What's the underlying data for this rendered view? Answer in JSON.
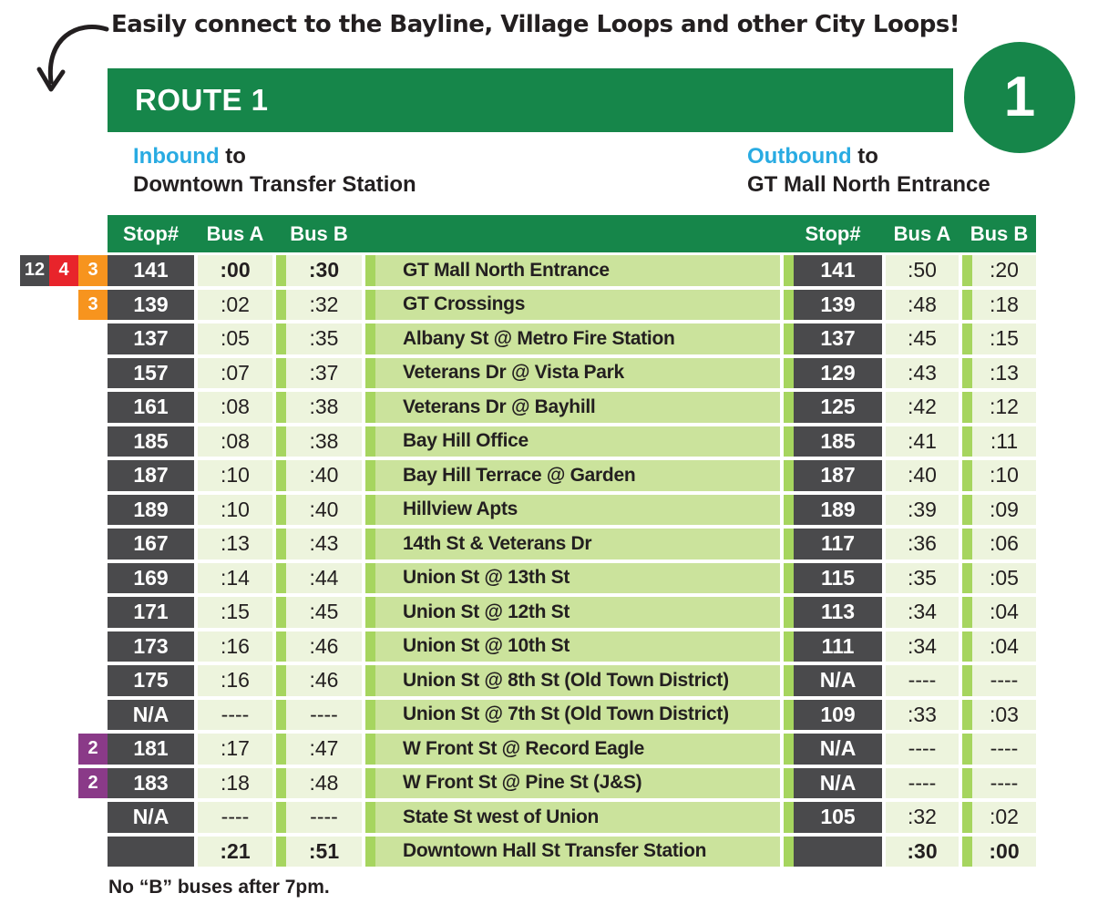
{
  "note": {
    "text": "Easily connect to the Bayline, Village Loops and other City Loops!"
  },
  "banner": {
    "title": "ROUTE 1",
    "circle_number": "1"
  },
  "directions": {
    "inbound": {
      "direction": "Inbound",
      "connector": " to",
      "destination": "Downtown Transfer Station"
    },
    "outbound": {
      "direction": "Outbound",
      "connector": " to",
      "destination": "GT Mall North Entrance"
    }
  },
  "table": {
    "headers": {
      "stop": "Stop#",
      "bus_a": "Bus A",
      "bus_b": "Bus B"
    },
    "rows": [
      {
        "badges": [
          {
            "label": "12",
            "color": "#4a4a4c"
          },
          {
            "label": "4",
            "color": "#e8242b"
          },
          {
            "label": "3",
            "color": "#f7941e"
          }
        ],
        "in": [
          "141",
          ":00",
          ":30"
        ],
        "in_bold": true,
        "name": "GT Mall North Entrance",
        "out": [
          "141",
          ":50",
          ":20"
        ],
        "out_bold": false
      },
      {
        "badges": [
          {
            "label": "3",
            "color": "#f7941e"
          }
        ],
        "in": [
          "139",
          ":02",
          ":32"
        ],
        "in_bold": false,
        "name": "GT Crossings",
        "out": [
          "139",
          ":48",
          ":18"
        ],
        "out_bold": false
      },
      {
        "in": [
          "137",
          ":05",
          ":35"
        ],
        "in_bold": false,
        "name": "Albany St @ Metro Fire Station",
        "out": [
          "137",
          ":45",
          ":15"
        ],
        "out_bold": false
      },
      {
        "in": [
          "157",
          ":07",
          ":37"
        ],
        "in_bold": false,
        "name": "Veterans Dr @ Vista Park",
        "out": [
          "129",
          ":43",
          ":13"
        ],
        "out_bold": false
      },
      {
        "in": [
          "161",
          ":08",
          ":38"
        ],
        "in_bold": false,
        "name": "Veterans Dr @ Bayhill",
        "out": [
          "125",
          ":42",
          ":12"
        ],
        "out_bold": false
      },
      {
        "in": [
          "185",
          ":08",
          ":38"
        ],
        "in_bold": false,
        "name": "Bay Hill Office",
        "out": [
          "185",
          ":41",
          ":11"
        ],
        "out_bold": false
      },
      {
        "in": [
          "187",
          ":10",
          ":40"
        ],
        "in_bold": false,
        "name": "Bay Hill Terrace @ Garden",
        "out": [
          "187",
          ":40",
          ":10"
        ],
        "out_bold": false
      },
      {
        "in": [
          "189",
          ":10",
          ":40"
        ],
        "in_bold": false,
        "name": "Hillview Apts",
        "out": [
          "189",
          ":39",
          ":09"
        ],
        "out_bold": false
      },
      {
        "in": [
          "167",
          ":13",
          ":43"
        ],
        "in_bold": false,
        "name": "14th St & Veterans Dr",
        "out": [
          "117",
          ":36",
          ":06"
        ],
        "out_bold": false
      },
      {
        "in": [
          "169",
          ":14",
          ":44"
        ],
        "in_bold": false,
        "name": "Union St @ 13th St",
        "out": [
          "115",
          ":35",
          ":05"
        ],
        "out_bold": false
      },
      {
        "in": [
          "171",
          ":15",
          ":45"
        ],
        "in_bold": false,
        "name": "Union St @ 12th St",
        "out": [
          "113",
          ":34",
          ":04"
        ],
        "out_bold": false
      },
      {
        "in": [
          "173",
          ":16",
          ":46"
        ],
        "in_bold": false,
        "name": "Union St @ 10th St",
        "out": [
          "111",
          ":34",
          ":04"
        ],
        "out_bold": false
      },
      {
        "in": [
          "175",
          ":16",
          ":46"
        ],
        "in_bold": false,
        "name": "Union St @ 8th St (Old Town District)",
        "out": [
          "N/A",
          "----",
          "----"
        ],
        "out_bold": false
      },
      {
        "in": [
          "N/A",
          "----",
          "----"
        ],
        "in_bold": false,
        "name": "Union St @ 7th St (Old Town District)",
        "out": [
          "109",
          ":33",
          ":03"
        ],
        "out_bold": false
      },
      {
        "badges": [
          {
            "label": "2",
            "color": "#8a3a88"
          }
        ],
        "in": [
          "181",
          ":17",
          ":47"
        ],
        "in_bold": false,
        "name": "W Front St @ Record Eagle",
        "out": [
          "N/A",
          "----",
          "----"
        ],
        "out_bold": false
      },
      {
        "badges": [
          {
            "label": "2",
            "color": "#8a3a88"
          }
        ],
        "in": [
          "183",
          ":18",
          ":48"
        ],
        "in_bold": false,
        "name": "W Front St @ Pine St (J&S)",
        "out": [
          "N/A",
          "----",
          "----"
        ],
        "out_bold": false
      },
      {
        "in": [
          "N/A",
          "----",
          "----"
        ],
        "in_bold": false,
        "name": "State St west of Union",
        "out": [
          "105",
          ":32",
          ":02"
        ],
        "out_bold": false
      },
      {
        "in": [
          "",
          ":21",
          ":51"
        ],
        "in_bold": true,
        "name": "Downtown Hall St Transfer Station",
        "out": [
          "",
          ":30",
          ":00"
        ],
        "out_bold": true
      }
    ]
  },
  "footnote": {
    "text": "No “B” buses after 7pm."
  },
  "colors": {
    "green": "#16864a",
    "blue": "#29abe2",
    "dark_cell": "#4a4a4c",
    "pale_green": "#edf4dd",
    "medium_green": "#cbe39c",
    "stripe_green": "#a6d55f",
    "badge_red": "#e8242b",
    "badge_orange": "#f7941e",
    "badge_purple": "#8a3a88",
    "badge_gray": "#4a4a4c",
    "text": "#231f20"
  }
}
